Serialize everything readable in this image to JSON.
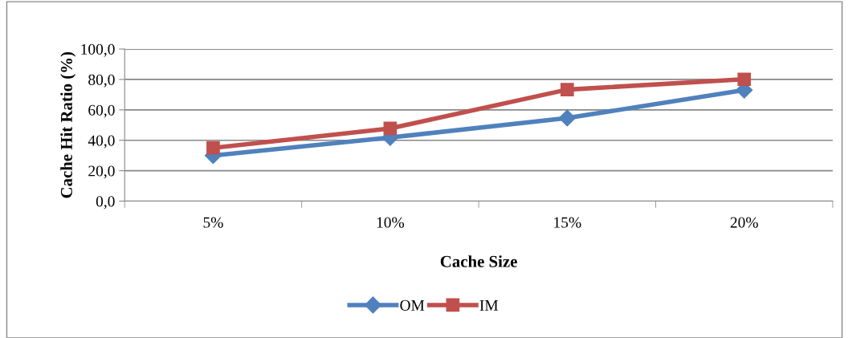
{
  "chart_data": {
    "type": "line",
    "xlabel": "Cache Size",
    "ylabel": "Cache Hit Ratio (%)",
    "categories": [
      "5%",
      "10%",
      "15%",
      "20%"
    ],
    "series": [
      {
        "name": "OM",
        "color": "#4f81bd",
        "marker": "diamond",
        "values": [
          30.0,
          41.8,
          54.6,
          73.0
        ]
      },
      {
        "name": "IM",
        "color": "#c0504d",
        "marker": "square",
        "values": [
          35.0,
          47.8,
          73.3,
          80.1
        ]
      }
    ],
    "ylim": [
      0,
      100
    ],
    "yticks": [
      {
        "value": 0,
        "label": "0,0"
      },
      {
        "value": 20,
        "label": "20,0"
      },
      {
        "value": 40,
        "label": "40,0"
      },
      {
        "value": 60,
        "label": "60,0"
      },
      {
        "value": 80,
        "label": "80,0"
      },
      {
        "value": 100,
        "label": "100,0"
      }
    ],
    "grid": "y",
    "legend": "bottom",
    "line_style": "solid"
  }
}
